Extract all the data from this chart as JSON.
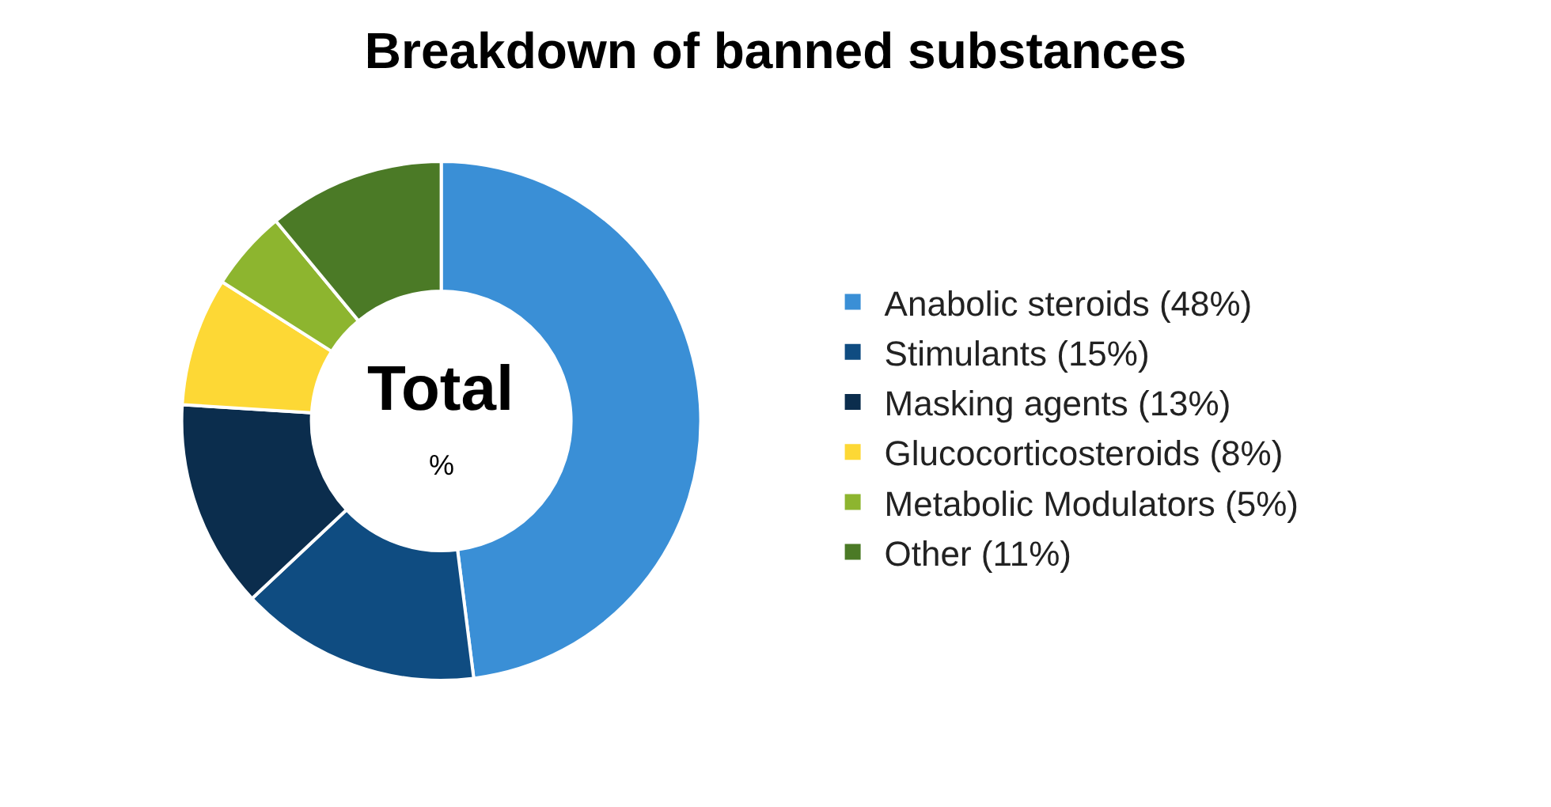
{
  "chart_data": {
    "type": "donut",
    "title": "Breakdown of banned substances",
    "categories": [
      "Anabolic steroids (48%)",
      "Stimulants (15%)",
      "Masking agents (13%)",
      "Glucocorticosteroids (8%)",
      "Metabolic Modulators (5%)",
      "Other (11%)"
    ],
    "values": [
      48,
      15,
      13,
      8,
      5,
      11
    ],
    "colors": [
      "#3a8fd6",
      "#0f4c81",
      "#0b2d4d",
      "#fdd835",
      "#8db52f",
      "#4b7a26"
    ],
    "annotations": [
      "Total",
      "%"
    ],
    "legend": "right"
  }
}
